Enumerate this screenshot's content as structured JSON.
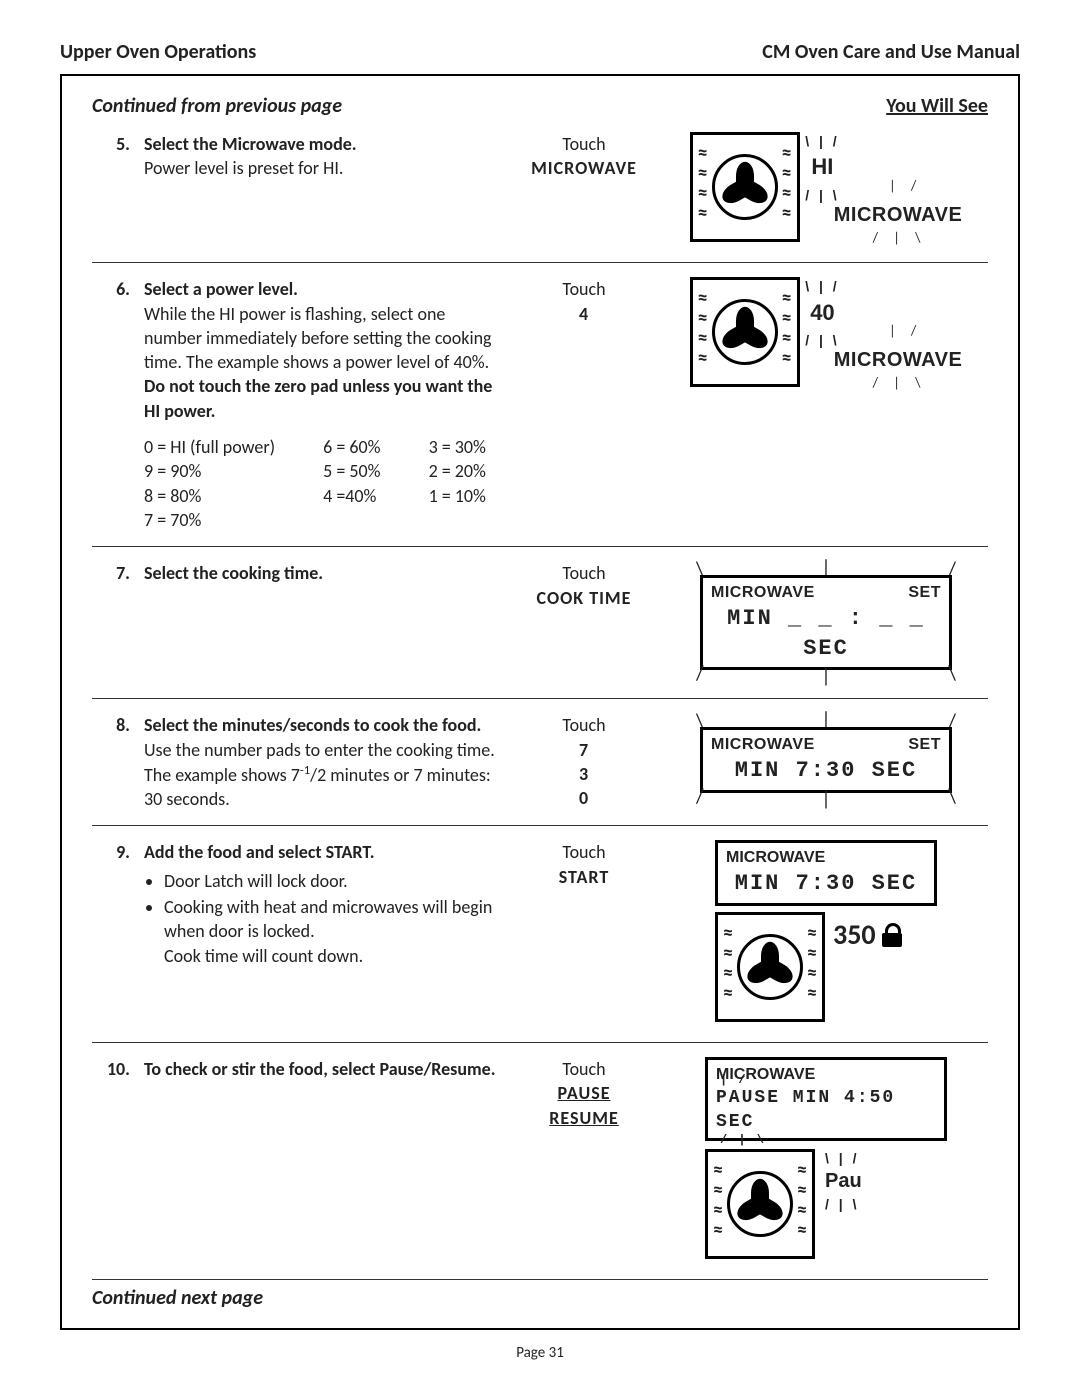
{
  "header": {
    "left": "Upper Oven Operations",
    "right": "CM Oven Care and Use Manual"
  },
  "continued_top": "Continued from previous page",
  "you_will_see": "You Will See",
  "continued_bottom": "Continued next page",
  "page_number": "Page 31",
  "colors": {
    "text": "#222222",
    "border": "#000000",
    "background": "#ffffff"
  },
  "typography": {
    "body_family": "Gill Sans",
    "body_size_pt": 14,
    "header_size_pt": 15,
    "display_heavy_family": "Arial Black"
  },
  "steps": [
    {
      "num": "5.",
      "title": "Select the Microwave mode.",
      "body": "Power level is preset for HI.",
      "touch": {
        "label": "Touch",
        "action": "MICROWAVE"
      },
      "display": {
        "type": "oven+mode",
        "side_value": "HI",
        "mode_label": "MICROWAVE"
      }
    },
    {
      "num": "6.",
      "title": "Select a power level.",
      "body": "While the HI power is flashing, select one number immediately before setting the cooking time. The example shows a power level of 40%.",
      "bold_after": "Do not touch the zero pad unless you want the HI power.",
      "power_levels": {
        "col1": [
          "0 = HI (full power)",
          "9 = 90%",
          "8 = 80%",
          "7 = 70%"
        ],
        "col2": [
          "6 = 60%",
          "5 = 50%",
          "4 =40%"
        ],
        "col3": [
          "3 = 30%",
          "2 = 20%",
          "1 = 10%"
        ]
      },
      "touch": {
        "label": "Touch",
        "action": "4"
      },
      "display": {
        "type": "oven+mode",
        "side_value": "40",
        "mode_label": "MICROWAVE"
      }
    },
    {
      "num": "7.",
      "title": "Select the cooking time.",
      "touch": {
        "label": "Touch",
        "action": "COOK TIME"
      },
      "display": {
        "type": "lcd",
        "row1_left": "MICROWAVE",
        "row1_right": "SET",
        "row2": "MIN _ _ : _ _ SEC"
      }
    },
    {
      "num": "8.",
      "title": "Select the minutes/seconds to cook the food.",
      "body_html": "Use the number pads to enter the cooking time. The example shows 7<span class='sup'>-1</span>/2 minutes or 7 minutes: 30 seconds.",
      "touch": {
        "label": "Touch",
        "actions": [
          "7",
          "3",
          "0"
        ]
      },
      "display": {
        "type": "lcd",
        "row1_left": "MICROWAVE",
        "row1_right": "SET",
        "row2": "MIN 7:30 SEC"
      }
    },
    {
      "num": "9.",
      "title": "Add the food and select START.",
      "bullets": [
        "Door Latch will lock door.",
        "Cooking with heat and microwaves will begin when door is locked.\nCook time will count down."
      ],
      "touch": {
        "label": "Touch",
        "action": "START"
      },
      "display": {
        "type": "start",
        "row1_left": "MICROWAVE",
        "row2": "MIN 7:30 SEC",
        "temp": "350"
      }
    },
    {
      "num": "10.",
      "title": "To check or stir the food, select Pause/Resume.",
      "touch": {
        "label": "Touch",
        "actions_underlined": [
          "PAUSE",
          "RESUME"
        ]
      },
      "display": {
        "type": "pause",
        "row1_left": "MICROWAVE",
        "row2": "PAUSE  MIN 4:50 SEC",
        "side_value": "Pau"
      }
    }
  ]
}
